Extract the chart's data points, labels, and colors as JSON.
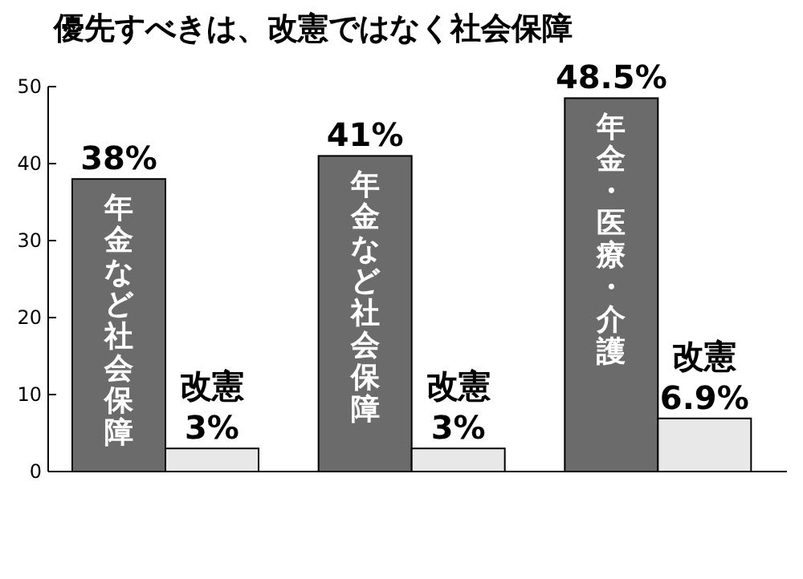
{
  "chart_data": {
    "type": "bar",
    "title": "優先すべきは、改憲ではなく社会保障",
    "categories": [
      null,
      null,
      null
    ],
    "series": [
      {
        "color": "#6b6b6b",
        "values": [
          38,
          41,
          48.5
        ],
        "value_labels": [
          "38%",
          "41%",
          "48.5%"
        ]
      },
      {
        "color": "#e8e8e8",
        "values": [
          3,
          3,
          6.9
        ],
        "value_labels": [
          "3%",
          "3%",
          "6.9%"
        ]
      }
    ],
    "ylim": [
      0,
      50
    ],
    "yticks": [
      0,
      10,
      20,
      30,
      40,
      50
    ],
    "annotations": [
      "年金など社会保障",
      "年金など社会保障",
      "年金・医療・介護",
      "改憲",
      "改憲",
      "改憲"
    ]
  }
}
